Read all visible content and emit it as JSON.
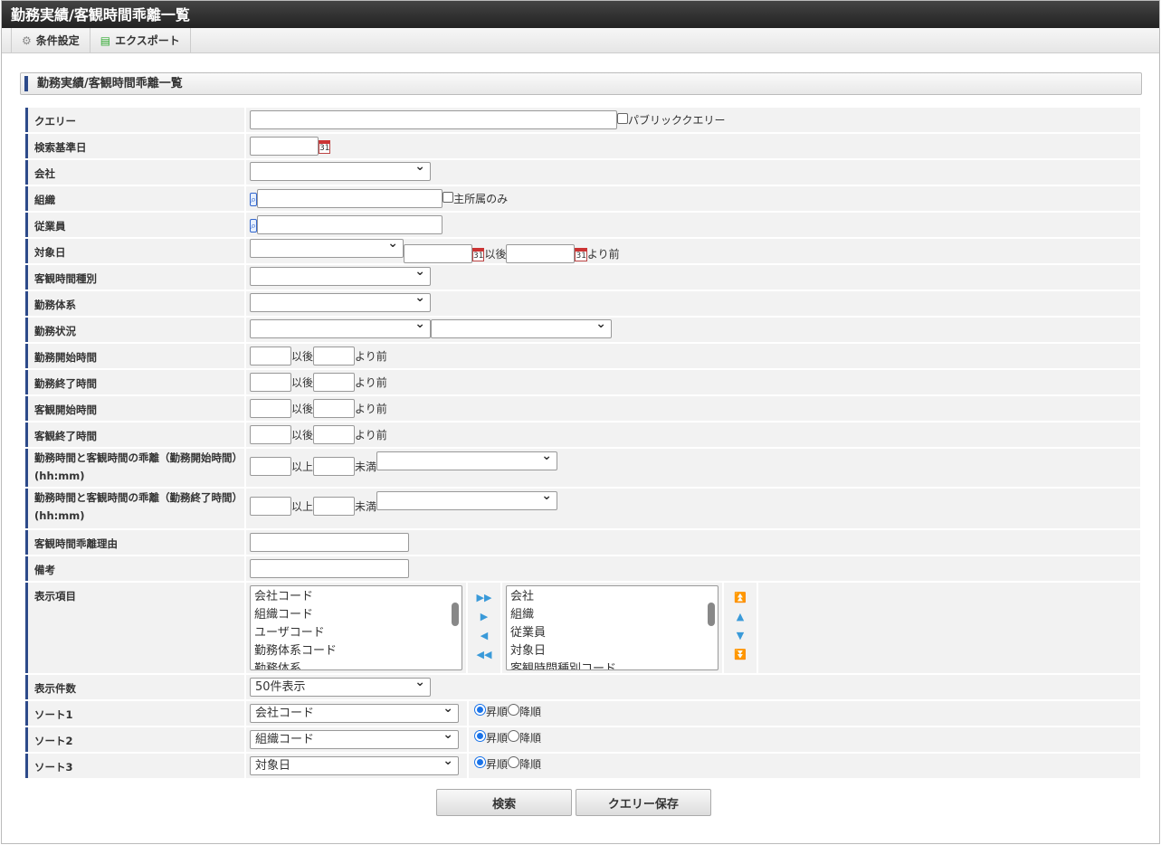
{
  "title": "勤務実績/客観時間乖離一覧",
  "toolbar": {
    "settings": "条件設定",
    "export": "エクスポート"
  },
  "section_title": "勤務実績/客観時間乖離一覧",
  "labels": {
    "query": "クエリー",
    "base_date": "検索基準日",
    "company": "会社",
    "org": "組織",
    "employee": "従業員",
    "target_date": "対象日",
    "obj_type": "客観時間種別",
    "work_system": "勤務体系",
    "work_status": "勤務状況",
    "work_start": "勤務開始時間",
    "work_end": "勤務終了時間",
    "obj_start": "客観開始時間",
    "obj_end": "客観終了時間",
    "dev_start": "勤務時間と客観時間の乖離（勤務開始時間）(hh:mm)",
    "dev_end": "勤務時間と客観時間の乖離（勤務終了時間）(hh:mm)",
    "dev_reason": "客観時間乖離理由",
    "remarks": "備考",
    "display_items": "表示項目",
    "count": "表示件数",
    "sort1": "ソート1",
    "sort2": "ソート2",
    "sort3": "ソート3"
  },
  "text": {
    "public_query": "パブリッククエリー",
    "main_only": "主所属のみ",
    "after": "以後",
    "before": "より前",
    "gte": "以上",
    "lt": "未満",
    "asc": "昇順",
    "desc": "降順",
    "cal": "31"
  },
  "available_items": [
    "会社コード",
    "組織コード",
    "ユーザコード",
    "勤務体系コード",
    "勤務体系"
  ],
  "selected_items": [
    "会社",
    "組織",
    "従業員",
    "対象日",
    "客観時間種別コード"
  ],
  "count_value": "50件表示",
  "sorts": [
    "会社コード",
    "組織コード",
    "対象日"
  ],
  "buttons": {
    "search": "検索",
    "save_query": "クエリー保存"
  }
}
